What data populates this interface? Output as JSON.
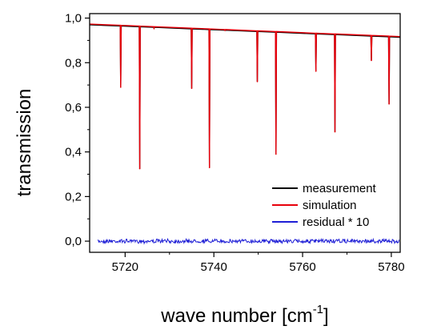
{
  "chart_data": {
    "type": "line",
    "xlabel_main": "wave number [cm",
    "xlabel_sup": "-1",
    "xlabel_close": "]",
    "ylabel": "transmission",
    "xlim": [
      5712,
      5782
    ],
    "ylim": [
      -0.05,
      1.02
    ],
    "x_ticks": [
      5720,
      5740,
      5760,
      5780
    ],
    "x_tick_labels": [
      "5720",
      "5740",
      "5760",
      "5780"
    ],
    "y_ticks": [
      0.0,
      0.2,
      0.4,
      0.6,
      0.8,
      1.0
    ],
    "y_tick_labels": [
      "0,0",
      "0,2",
      "0,4",
      "0,6",
      "0,8",
      "1,0"
    ],
    "baseline": {
      "x_start": 5712,
      "y_start": 0.973,
      "x_end": 5782,
      "y_end": 0.917
    },
    "absorption_lines": [
      {
        "x": 5719.0,
        "y": 0.69
      },
      {
        "x": 5723.3,
        "y": 0.325
      },
      {
        "x": 5726.5,
        "y": 0.955
      },
      {
        "x": 5735.0,
        "y": 0.685
      },
      {
        "x": 5739.0,
        "y": 0.33
      },
      {
        "x": 5742.5,
        "y": 0.945
      },
      {
        "x": 5749.8,
        "y": 0.715
      },
      {
        "x": 5754.0,
        "y": 0.39
      },
      {
        "x": 5763.0,
        "y": 0.762
      },
      {
        "x": 5767.3,
        "y": 0.49
      },
      {
        "x": 5775.5,
        "y": 0.81
      },
      {
        "x": 5779.5,
        "y": 0.615
      }
    ],
    "series": [
      {
        "name": "measurement",
        "color": "#000000"
      },
      {
        "name": "simulation",
        "color": "#e8000b"
      },
      {
        "name": "residual * 10",
        "color": "#1f1fd6"
      }
    ],
    "residual_level": 0.0,
    "legend_placement": "lower-right",
    "grid": false
  }
}
